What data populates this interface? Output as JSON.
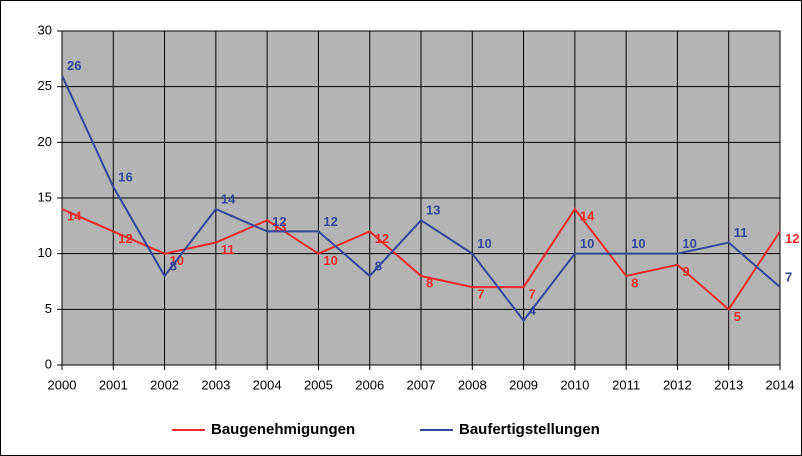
{
  "chart_data": {
    "type": "line",
    "categories": [
      "2000",
      "2001",
      "2002",
      "2003",
      "2004",
      "2005",
      "2006",
      "2007",
      "2008",
      "2009",
      "2010",
      "2011",
      "2012",
      "2013",
      "2014"
    ],
    "series": [
      {
        "name": "Baugenehmigungen",
        "color": "#ee2a2a",
        "values": [
          14,
          12,
          10,
          11,
          13,
          10,
          12,
          8,
          7,
          7,
          14,
          8,
          9,
          5,
          12
        ]
      },
      {
        "name": "Baufertigstellungen",
        "color": "#33469a",
        "values": [
          26,
          16,
          8,
          14,
          12,
          12,
          8,
          13,
          10,
          4,
          10,
          10,
          10,
          11,
          7
        ]
      }
    ],
    "ylim": [
      0,
      30
    ],
    "yticks": [
      0,
      5,
      10,
      15,
      20,
      25,
      30
    ],
    "grid": true,
    "background": "#b4b4b4",
    "legend": "bottom"
  }
}
